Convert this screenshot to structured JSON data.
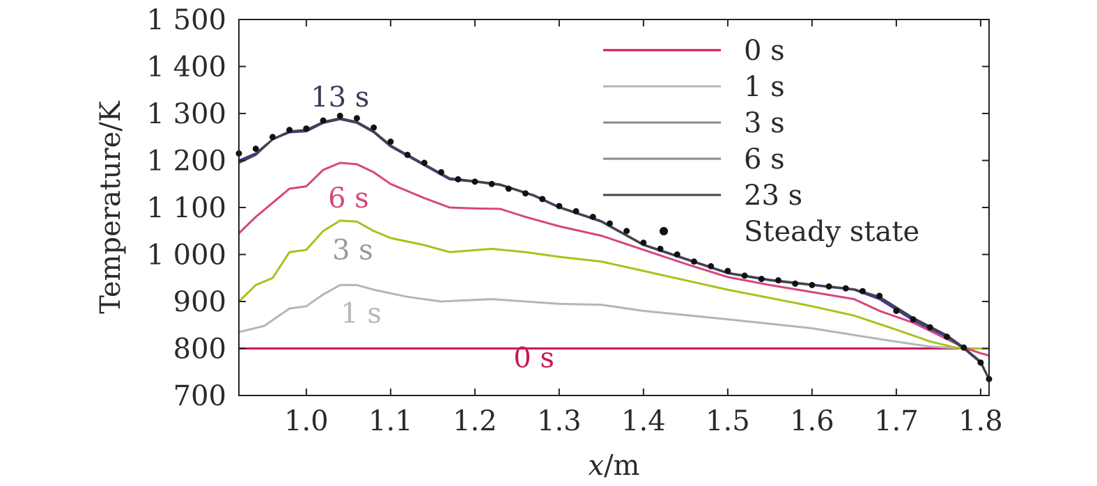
{
  "chart_data": {
    "type": "line",
    "title": "",
    "xlabel_italic": "x",
    "xlabel_unit": "/m",
    "ylabel": "Temperature/K",
    "xlim": [
      0.92,
      1.81
    ],
    "ylim": [
      700,
      1500
    ],
    "x_ticks": [
      1.0,
      1.1,
      1.2,
      1.3,
      1.4,
      1.5,
      1.6,
      1.7,
      1.8
    ],
    "x_tick_labels": [
      "1.0",
      "1.1",
      "1.2",
      "1.3",
      "1.4",
      "1.5",
      "1.6",
      "1.7",
      "1.8"
    ],
    "y_ticks": [
      700,
      800,
      900,
      1000,
      1100,
      1200,
      1300,
      1400,
      1500
    ],
    "y_tick_labels": [
      "700",
      "800",
      "900",
      "1 000",
      "1 100",
      "1 200",
      "1 300",
      "1 400",
      "1 500"
    ],
    "legend_position": "top-right",
    "series": [
      {
        "name": "0 s",
        "kind": "line",
        "color": "#c8195a",
        "points": [
          [
            0.92,
            800
          ],
          [
            1.81,
            800
          ]
        ]
      },
      {
        "name": "1 s",
        "kind": "line",
        "color": "#b5b5b5",
        "points": [
          [
            0.92,
            835
          ],
          [
            0.95,
            848
          ],
          [
            0.98,
            885
          ],
          [
            1.0,
            890
          ],
          [
            1.02,
            915
          ],
          [
            1.04,
            935
          ],
          [
            1.06,
            935
          ],
          [
            1.08,
            925
          ],
          [
            1.12,
            910
          ],
          [
            1.16,
            900
          ],
          [
            1.22,
            905
          ],
          [
            1.3,
            895
          ],
          [
            1.35,
            893
          ],
          [
            1.4,
            880
          ],
          [
            1.5,
            862
          ],
          [
            1.6,
            843
          ],
          [
            1.68,
            820
          ],
          [
            1.74,
            804
          ],
          [
            1.78,
            800
          ],
          [
            1.81,
            800
          ]
        ]
      },
      {
        "name": "3 s",
        "kind": "line",
        "color": "#a8c21e",
        "points": [
          [
            0.92,
            900
          ],
          [
            0.94,
            935
          ],
          [
            0.96,
            950
          ],
          [
            0.98,
            1005
          ],
          [
            1.0,
            1010
          ],
          [
            1.02,
            1050
          ],
          [
            1.04,
            1072
          ],
          [
            1.06,
            1070
          ],
          [
            1.08,
            1050
          ],
          [
            1.1,
            1035
          ],
          [
            1.14,
            1020
          ],
          [
            1.17,
            1005
          ],
          [
            1.22,
            1012
          ],
          [
            1.26,
            1005
          ],
          [
            1.3,
            995
          ],
          [
            1.35,
            985
          ],
          [
            1.4,
            965
          ],
          [
            1.5,
            925
          ],
          [
            1.6,
            890
          ],
          [
            1.65,
            870
          ],
          [
            1.7,
            840
          ],
          [
            1.74,
            815
          ],
          [
            1.77,
            802
          ],
          [
            1.79,
            800
          ],
          [
            1.81,
            800
          ]
        ]
      },
      {
        "name": "6 s",
        "kind": "line",
        "color": "#d6477a",
        "points": [
          [
            0.92,
            1045
          ],
          [
            0.94,
            1080
          ],
          [
            0.96,
            1110
          ],
          [
            0.98,
            1140
          ],
          [
            1.0,
            1145
          ],
          [
            1.02,
            1180
          ],
          [
            1.04,
            1195
          ],
          [
            1.06,
            1192
          ],
          [
            1.08,
            1175
          ],
          [
            1.1,
            1150
          ],
          [
            1.14,
            1120
          ],
          [
            1.17,
            1100
          ],
          [
            1.2,
            1098
          ],
          [
            1.23,
            1097
          ],
          [
            1.26,
            1080
          ],
          [
            1.3,
            1060
          ],
          [
            1.35,
            1040
          ],
          [
            1.4,
            1010
          ],
          [
            1.45,
            980
          ],
          [
            1.5,
            952
          ],
          [
            1.55,
            935
          ],
          [
            1.6,
            920
          ],
          [
            1.65,
            905
          ],
          [
            1.68,
            880
          ],
          [
            1.72,
            855
          ],
          [
            1.76,
            820
          ],
          [
            1.78,
            802
          ],
          [
            1.8,
            790
          ],
          [
            1.81,
            785
          ]
        ]
      },
      {
        "name": "13 s",
        "kind": "line",
        "color": "#3a3a9e",
        "points": [
          [
            0.92,
            1200
          ],
          [
            0.94,
            1215
          ],
          [
            0.96,
            1245
          ],
          [
            0.98,
            1260
          ],
          [
            1.0,
            1262
          ],
          [
            1.02,
            1280
          ],
          [
            1.04,
            1288
          ],
          [
            1.06,
            1280
          ],
          [
            1.08,
            1260
          ],
          [
            1.1,
            1230
          ],
          [
            1.14,
            1190
          ],
          [
            1.17,
            1160
          ],
          [
            1.2,
            1155
          ],
          [
            1.23,
            1148
          ],
          [
            1.27,
            1125
          ],
          [
            1.3,
            1100
          ],
          [
            1.35,
            1070
          ],
          [
            1.4,
            1020
          ],
          [
            1.45,
            990
          ],
          [
            1.5,
            960
          ],
          [
            1.55,
            945
          ],
          [
            1.6,
            935
          ],
          [
            1.65,
            925
          ],
          [
            1.68,
            905
          ],
          [
            1.72,
            860
          ],
          [
            1.76,
            825
          ],
          [
            1.78,
            800
          ],
          [
            1.8,
            770
          ],
          [
            1.81,
            735
          ]
        ]
      },
      {
        "name": "23 s",
        "kind": "line",
        "color": "#444444",
        "points": [
          [
            0.92,
            1195
          ],
          [
            0.94,
            1212
          ],
          [
            0.96,
            1245
          ],
          [
            0.98,
            1262
          ],
          [
            1.0,
            1265
          ],
          [
            1.02,
            1282
          ],
          [
            1.04,
            1290
          ],
          [
            1.06,
            1282
          ],
          [
            1.08,
            1262
          ],
          [
            1.1,
            1232
          ],
          [
            1.14,
            1192
          ],
          [
            1.17,
            1162
          ],
          [
            1.2,
            1156
          ],
          [
            1.23,
            1149
          ],
          [
            1.27,
            1126
          ],
          [
            1.3,
            1101
          ],
          [
            1.35,
            1071
          ],
          [
            1.4,
            1021
          ],
          [
            1.45,
            991
          ],
          [
            1.5,
            961
          ],
          [
            1.55,
            946
          ],
          [
            1.6,
            936
          ],
          [
            1.65,
            926
          ],
          [
            1.68,
            910
          ],
          [
            1.72,
            865
          ],
          [
            1.76,
            828
          ],
          [
            1.78,
            802
          ],
          [
            1.8,
            772
          ],
          [
            1.81,
            735
          ]
        ]
      },
      {
        "name": "Steady state",
        "kind": "scatter",
        "color": "#111111",
        "points": [
          [
            0.92,
            1215
          ],
          [
            0.94,
            1225
          ],
          [
            0.96,
            1250
          ],
          [
            0.98,
            1265
          ],
          [
            1.0,
            1268
          ],
          [
            1.02,
            1285
          ],
          [
            1.04,
            1295
          ],
          [
            1.06,
            1290
          ],
          [
            1.08,
            1270
          ],
          [
            1.1,
            1240
          ],
          [
            1.12,
            1212
          ],
          [
            1.14,
            1195
          ],
          [
            1.16,
            1175
          ],
          [
            1.18,
            1160
          ],
          [
            1.2,
            1155
          ],
          [
            1.22,
            1150
          ],
          [
            1.24,
            1140
          ],
          [
            1.26,
            1130
          ],
          [
            1.28,
            1118
          ],
          [
            1.3,
            1103
          ],
          [
            1.32,
            1092
          ],
          [
            1.34,
            1080
          ],
          [
            1.36,
            1066
          ],
          [
            1.38,
            1050
          ],
          [
            1.4,
            1025
          ],
          [
            1.42,
            1012
          ],
          [
            1.44,
            1000
          ],
          [
            1.46,
            985
          ],
          [
            1.48,
            975
          ],
          [
            1.5,
            965
          ],
          [
            1.52,
            955
          ],
          [
            1.54,
            948
          ],
          [
            1.56,
            945
          ],
          [
            1.58,
            938
          ],
          [
            1.6,
            935
          ],
          [
            1.62,
            932
          ],
          [
            1.64,
            928
          ],
          [
            1.66,
            922
          ],
          [
            1.68,
            912
          ],
          [
            1.7,
            880
          ],
          [
            1.72,
            862
          ],
          [
            1.74,
            845
          ],
          [
            1.76,
            825
          ],
          [
            1.78,
            802
          ],
          [
            1.8,
            770
          ],
          [
            1.81,
            735
          ]
        ]
      }
    ],
    "legend_entries": [
      {
        "label": "0 s",
        "color": "#c8195a",
        "kind": "line"
      },
      {
        "label": "1 s",
        "color": "#b5b5b5",
        "kind": "line"
      },
      {
        "label": "3 s",
        "color": "#8a8a8a",
        "kind": "line"
      },
      {
        "label": "6 s",
        "color": "#8a8a8a",
        "kind": "line"
      },
      {
        "label": "23 s",
        "color": "#444444",
        "kind": "line"
      },
      {
        "label": "Steady state",
        "color": "#111111",
        "kind": "marker"
      }
    ],
    "annotations": [
      {
        "text": "13 s",
        "x": 1.04,
        "y": 1315,
        "color": "#3a3a5a"
      },
      {
        "text": "6 s",
        "x": 1.05,
        "y": 1100,
        "color": "#d6477a"
      },
      {
        "text": "3 s",
        "x": 1.055,
        "y": 990,
        "color": "#999999"
      },
      {
        "text": "1 s",
        "x": 1.065,
        "y": 855,
        "color": "#b8b8b8"
      },
      {
        "text": "0 s",
        "x": 1.27,
        "y": 760,
        "color": "#c8195a"
      }
    ]
  }
}
